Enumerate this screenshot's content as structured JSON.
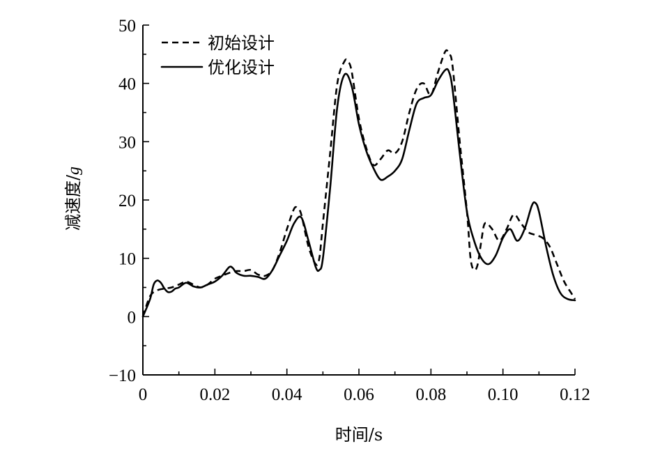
{
  "chart_data": {
    "type": "line",
    "title": "",
    "xlabel": "时间/s",
    "ylabel": "减速度/",
    "ylabel_unit": "g",
    "xlim": [
      0,
      0.12
    ],
    "ylim": [
      -10,
      50
    ],
    "x_ticks": [
      0,
      0.02,
      0.04,
      0.06,
      0.08,
      0.1,
      0.12
    ],
    "x_tick_labels": [
      "0",
      "0.02",
      "0.04",
      "0.06",
      "0.08",
      "0.10",
      "0.12"
    ],
    "y_ticks": [
      -10,
      0,
      10,
      20,
      30,
      40,
      50
    ],
    "y_tick_labels": [
      "−10",
      "0",
      "10",
      "20",
      "30",
      "40",
      "50"
    ],
    "grid": false,
    "legend_position": "top-left",
    "series": [
      {
        "name": "初始设计",
        "style": "dashed",
        "color": "#000000",
        "x": [
          0,
          0.002,
          0.004,
          0.006,
          0.008,
          0.01,
          0.012,
          0.014,
          0.016,
          0.018,
          0.02,
          0.022,
          0.024,
          0.026,
          0.028,
          0.03,
          0.032,
          0.034,
          0.036,
          0.038,
          0.04,
          0.042,
          0.043,
          0.044,
          0.046,
          0.048,
          0.049,
          0.05,
          0.052,
          0.054,
          0.056,
          0.057,
          0.058,
          0.06,
          0.062,
          0.064,
          0.066,
          0.068,
          0.07,
          0.072,
          0.074,
          0.076,
          0.078,
          0.08,
          0.082,
          0.084,
          0.085,
          0.086,
          0.088,
          0.09,
          0.091,
          0.092,
          0.093,
          0.094,
          0.095,
          0.097,
          0.099,
          0.101,
          0.103,
          0.105,
          0.107,
          0.109,
          0.111,
          0.113,
          0.115,
          0.117,
          0.119,
          0.12
        ],
        "y": [
          0,
          3.5,
          4.5,
          4.8,
          5.0,
          5.5,
          6.0,
          5.5,
          5.0,
          5.5,
          6.5,
          7.0,
          7.5,
          7.8,
          7.8,
          8.0,
          7.2,
          7.0,
          8.0,
          11.0,
          15.0,
          18.5,
          18.5,
          17.5,
          12.0,
          9.0,
          10.0,
          16.0,
          28.0,
          40.0,
          43.8,
          43.7,
          42.0,
          34.0,
          29.0,
          26.0,
          27.0,
          28.5,
          28.0,
          30.0,
          35.0,
          39.0,
          40.0,
          38.0,
          42.0,
          45.5,
          45.0,
          43.0,
          30.0,
          18.0,
          10.0,
          8.0,
          9.0,
          13.0,
          16.0,
          15.0,
          13.0,
          15.0,
          17.5,
          16.0,
          14.5,
          14.0,
          13.5,
          12.0,
          9.0,
          6.0,
          4.0,
          3.0
        ]
      },
      {
        "name": "优化设计",
        "style": "solid",
        "color": "#000000",
        "x": [
          0,
          0.002,
          0.003,
          0.004,
          0.005,
          0.006,
          0.007,
          0.008,
          0.009,
          0.01,
          0.012,
          0.014,
          0.016,
          0.018,
          0.02,
          0.022,
          0.024,
          0.025,
          0.026,
          0.028,
          0.03,
          0.032,
          0.034,
          0.036,
          0.038,
          0.04,
          0.042,
          0.044,
          0.046,
          0.048,
          0.049,
          0.05,
          0.052,
          0.054,
          0.056,
          0.058,
          0.06,
          0.062,
          0.064,
          0.066,
          0.068,
          0.07,
          0.072,
          0.074,
          0.076,
          0.078,
          0.08,
          0.082,
          0.084,
          0.085,
          0.086,
          0.088,
          0.09,
          0.092,
          0.094,
          0.096,
          0.098,
          0.1,
          0.102,
          0.104,
          0.106,
          0.108,
          0.109,
          0.11,
          0.112,
          0.114,
          0.116,
          0.118,
          0.12
        ],
        "y": [
          0,
          3.0,
          5.5,
          6.2,
          5.8,
          4.8,
          4.2,
          4.3,
          4.8,
          5.0,
          5.8,
          5.2,
          5.0,
          5.5,
          6.0,
          7.0,
          8.5,
          8.3,
          7.5,
          7.0,
          7.0,
          6.8,
          6.5,
          8.0,
          10.5,
          13.0,
          16.0,
          17.0,
          13.0,
          8.5,
          8.0,
          10.0,
          22.0,
          36.0,
          41.5,
          39.5,
          33.0,
          28.5,
          25.5,
          23.5,
          24.0,
          25.0,
          27.0,
          32.0,
          36.5,
          37.5,
          38.0,
          40.5,
          42.3,
          42.0,
          39.0,
          28.0,
          18.0,
          13.0,
          10.0,
          9.0,
          10.5,
          13.5,
          15.0,
          13.0,
          15.0,
          19.0,
          19.5,
          18.0,
          12.0,
          7.0,
          4.0,
          3.0,
          2.8
        ]
      }
    ]
  }
}
